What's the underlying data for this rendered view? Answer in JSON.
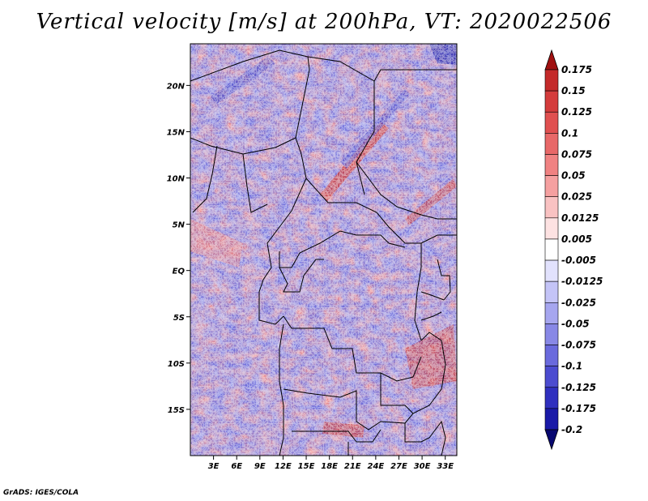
{
  "title": "Vertical velocity [m/s] at 200hPa, VT: 2020022506",
  "credit": "GrADS: IGES/COLA",
  "map": {
    "lat_labels": [
      "20N",
      "15N",
      "10N",
      "5N",
      "EQ",
      "5S",
      "10S",
      "15S"
    ],
    "lon_labels": [
      "3E",
      "6E",
      "9E",
      "12E",
      "15E",
      "18E",
      "21E",
      "24E",
      "27E",
      "30E",
      "33E"
    ],
    "lat_values": [
      20,
      15,
      10,
      5,
      0,
      -5,
      -10,
      -15
    ],
    "lon_values": [
      3,
      6,
      9,
      12,
      15,
      18,
      21,
      24,
      27,
      30,
      33
    ],
    "lat_range": [
      -20,
      24.5
    ],
    "lon_range": [
      0,
      34.5
    ]
  },
  "colorbar": {
    "labels": [
      "0.175",
      "0.15",
      "0.125",
      "0.1",
      "0.075",
      "0.05",
      "0.025",
      "0.0125",
      "0.005",
      "-0.005",
      "-0.0125",
      "-0.025",
      "-0.05",
      "-0.075",
      "-0.1",
      "-0.125",
      "-0.175",
      "-0.2"
    ],
    "colors": [
      "#b01818",
      "#c42a2a",
      "#d43c3c",
      "#e05050",
      "#e86868",
      "#f08282",
      "#f5a0a0",
      "#f9c2c2",
      "#fde2e2",
      "#ffffff",
      "#e2e2fd",
      "#c4c4f7",
      "#a6a6ef",
      "#8888e6",
      "#6a6add",
      "#4c4cd0",
      "#3030bf",
      "#1a1aa8",
      "#0c0c8c"
    ],
    "top_cap_color": "#a01010",
    "bottom_cap_color": "#080870"
  }
}
